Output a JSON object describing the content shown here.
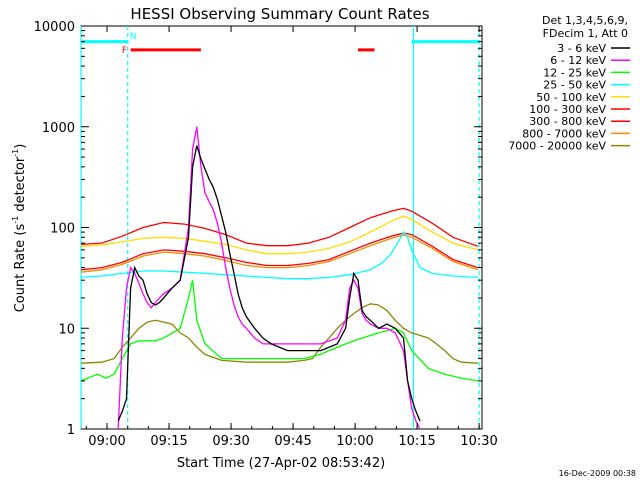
{
  "chart_data": {
    "type": "line",
    "title": "HESSI Observing Summary Count Rates",
    "xlabel": "Start Time (27-Apr-02 08:53:42)",
    "ylabel_main": "Count Rate (s",
    "ylabel_sup1": "-1",
    "ylabel_mid": " detector",
    "ylabel_sup2": "-1",
    "ylabel_end": ")",
    "x_unit": "minutes after 08:53:42",
    "xlim": [
      0,
      97
    ],
    "ylim": [
      1,
      10000
    ],
    "yscale": "log",
    "x_tick_labels": [
      {
        "label": "09:00",
        "x": 6.3
      },
      {
        "label": "09:15",
        "x": 21.3
      },
      {
        "label": "09:30",
        "x": 36.3
      },
      {
        "label": "09:45",
        "x": 51.3
      },
      {
        "label": "10:00",
        "x": 66.3
      },
      {
        "label": "10:15",
        "x": 81.3
      },
      {
        "label": "10:30",
        "x": 96.3
      }
    ],
    "y_tick_labels": [
      {
        "label": "1",
        "v": 1
      },
      {
        "label": "10",
        "v": 10
      },
      {
        "label": "100",
        "v": 100
      },
      {
        "label": "1000",
        "v": 1000
      },
      {
        "label": "10000",
        "v": 10000
      }
    ],
    "legend_header": [
      "Det 1,3,4,5,6,9,",
      "FDecim 1, Att 0"
    ],
    "legend_position": "right",
    "series": [
      {
        "name": "3 - 6 keV",
        "color": "#000000",
        "points": [
          [
            9,
            1.2
          ],
          [
            10,
            1.5
          ],
          [
            11,
            2
          ],
          [
            12,
            25
          ],
          [
            13,
            40
          ],
          [
            14,
            33
          ],
          [
            15,
            30
          ],
          [
            16,
            22
          ],
          [
            17,
            18
          ],
          [
            18,
            17
          ],
          [
            19,
            18
          ],
          [
            20,
            20
          ],
          [
            22,
            25
          ],
          [
            24,
            30
          ],
          [
            26,
            80
          ],
          [
            27,
            400
          ],
          [
            28,
            650
          ],
          [
            29,
            480
          ],
          [
            30,
            380
          ],
          [
            31,
            300
          ],
          [
            32,
            250
          ],
          [
            33,
            190
          ],
          [
            34,
            130
          ],
          [
            35,
            90
          ],
          [
            36,
            55
          ],
          [
            37,
            35
          ],
          [
            38,
            22
          ],
          [
            39,
            16
          ],
          [
            40,
            13
          ],
          [
            42,
            10
          ],
          [
            44,
            8
          ],
          [
            46,
            7
          ],
          [
            50,
            6
          ],
          [
            54,
            6
          ],
          [
            58,
            6
          ],
          [
            62,
            7
          ],
          [
            64,
            10
          ],
          [
            65,
            20
          ],
          [
            66,
            35
          ],
          [
            67,
            30
          ],
          [
            68,
            15
          ],
          [
            69,
            13
          ],
          [
            70,
            12
          ],
          [
            72,
            10
          ],
          [
            74,
            11
          ],
          [
            76,
            10
          ],
          [
            78,
            8
          ],
          [
            79,
            3
          ],
          [
            80,
            2
          ],
          [
            81,
            1.5
          ],
          [
            82,
            1.2
          ]
        ]
      },
      {
        "name": "6 - 12 keV",
        "color": "#ff00ff",
        "points": [
          [
            9,
            1
          ],
          [
            10,
            8
          ],
          [
            11,
            25
          ],
          [
            12,
            40
          ],
          [
            13,
            35
          ],
          [
            14,
            28
          ],
          [
            15,
            22
          ],
          [
            16,
            18
          ],
          [
            17,
            16
          ],
          [
            18,
            18
          ],
          [
            19,
            20
          ],
          [
            20,
            22
          ],
          [
            22,
            25
          ],
          [
            24,
            30
          ],
          [
            26,
            100
          ],
          [
            27,
            600
          ],
          [
            28,
            1000
          ],
          [
            29,
            400
          ],
          [
            30,
            220
          ],
          [
            31,
            180
          ],
          [
            32,
            150
          ],
          [
            33,
            110
          ],
          [
            34,
            70
          ],
          [
            35,
            40
          ],
          [
            36,
            25
          ],
          [
            37,
            17
          ],
          [
            38,
            13
          ],
          [
            39,
            11
          ],
          [
            40,
            10
          ],
          [
            42,
            8
          ],
          [
            44,
            7
          ],
          [
            46,
            7
          ],
          [
            50,
            7
          ],
          [
            54,
            7
          ],
          [
            58,
            7
          ],
          [
            62,
            8
          ],
          [
            64,
            12
          ],
          [
            65,
            25
          ],
          [
            66,
            30
          ],
          [
            67,
            25
          ],
          [
            68,
            14
          ],
          [
            69,
            12
          ],
          [
            70,
            11
          ],
          [
            72,
            10
          ],
          [
            74,
            10
          ],
          [
            76,
            9
          ],
          [
            78,
            6
          ],
          [
            79,
            3
          ],
          [
            80,
            1.6
          ],
          [
            81,
            1.2
          ],
          [
            82,
            1
          ]
        ]
      },
      {
        "name": "12 - 25 keV",
        "color": "#00ff00",
        "points": [
          [
            0,
            3
          ],
          [
            4,
            3.5
          ],
          [
            6,
            3.2
          ],
          [
            8,
            3.5
          ],
          [
            10,
            5
          ],
          [
            12,
            7
          ],
          [
            14,
            7.5
          ],
          [
            18,
            7.5
          ],
          [
            20,
            8
          ],
          [
            24,
            10
          ],
          [
            26,
            20
          ],
          [
            27,
            30
          ],
          [
            28,
            12
          ],
          [
            30,
            7
          ],
          [
            34,
            5
          ],
          [
            38,
            5
          ],
          [
            42,
            5
          ],
          [
            46,
            5
          ],
          [
            50,
            5
          ],
          [
            54,
            5
          ],
          [
            58,
            5.5
          ],
          [
            60,
            6
          ],
          [
            64,
            7
          ],
          [
            68,
            8
          ],
          [
            72,
            9
          ],
          [
            76,
            10
          ],
          [
            78,
            9
          ],
          [
            80,
            6
          ],
          [
            84,
            4
          ],
          [
            88,
            3.5
          ],
          [
            92,
            3.2
          ],
          [
            96,
            3
          ]
        ]
      },
      {
        "name": "25 - 50 keV",
        "color": "#00ffff",
        "points": [
          [
            0,
            32
          ],
          [
            5,
            33
          ],
          [
            10,
            35
          ],
          [
            15,
            37
          ],
          [
            20,
            37
          ],
          [
            25,
            36
          ],
          [
            30,
            35
          ],
          [
            35,
            34
          ],
          [
            40,
            33
          ],
          [
            45,
            32
          ],
          [
            50,
            31
          ],
          [
            55,
            31
          ],
          [
            60,
            32
          ],
          [
            65,
            34
          ],
          [
            70,
            38
          ],
          [
            73,
            45
          ],
          [
            75,
            55
          ],
          [
            77,
            75
          ],
          [
            78,
            90
          ],
          [
            79,
            80
          ],
          [
            80,
            60
          ],
          [
            82,
            40
          ],
          [
            85,
            35
          ],
          [
            90,
            33
          ],
          [
            96,
            32
          ]
        ]
      },
      {
        "name": "50 - 100 keV",
        "color": "#ffdd00",
        "points": [
          [
            0,
            65
          ],
          [
            5,
            67
          ],
          [
            10,
            72
          ],
          [
            15,
            78
          ],
          [
            20,
            80
          ],
          [
            25,
            78
          ],
          [
            30,
            73
          ],
          [
            35,
            68
          ],
          [
            40,
            60
          ],
          [
            45,
            55
          ],
          [
            50,
            55
          ],
          [
            55,
            57
          ],
          [
            60,
            62
          ],
          [
            65,
            72
          ],
          [
            70,
            90
          ],
          [
            75,
            115
          ],
          [
            78,
            130
          ],
          [
            80,
            120
          ],
          [
            85,
            90
          ],
          [
            90,
            70
          ],
          [
            96,
            60
          ]
        ]
      },
      {
        "name": "100 - 300 keV",
        "color": "#ff0000",
        "points": [
          [
            0,
            68
          ],
          [
            5,
            70
          ],
          [
            10,
            82
          ],
          [
            15,
            100
          ],
          [
            20,
            112
          ],
          [
            25,
            108
          ],
          [
            30,
            98
          ],
          [
            35,
            85
          ],
          [
            40,
            70
          ],
          [
            45,
            66
          ],
          [
            50,
            66
          ],
          [
            55,
            70
          ],
          [
            60,
            80
          ],
          [
            65,
            100
          ],
          [
            70,
            125
          ],
          [
            75,
            145
          ],
          [
            78,
            155
          ],
          [
            80,
            145
          ],
          [
            85,
            110
          ],
          [
            90,
            80
          ],
          [
            96,
            65
          ]
        ]
      },
      {
        "name": "300 - 800 keV",
        "color": "#ff0000",
        "points": [
          [
            0,
            38
          ],
          [
            5,
            40
          ],
          [
            10,
            45
          ],
          [
            15,
            55
          ],
          [
            20,
            60
          ],
          [
            25,
            58
          ],
          [
            30,
            55
          ],
          [
            35,
            50
          ],
          [
            40,
            45
          ],
          [
            45,
            42
          ],
          [
            50,
            42
          ],
          [
            55,
            44
          ],
          [
            60,
            48
          ],
          [
            65,
            58
          ],
          [
            70,
            70
          ],
          [
            75,
            82
          ],
          [
            78,
            88
          ],
          [
            80,
            85
          ],
          [
            85,
            65
          ],
          [
            90,
            48
          ],
          [
            96,
            40
          ]
        ]
      },
      {
        "name": "800 - 7000 keV",
        "color": "#ff8800",
        "points": [
          [
            0,
            36
          ],
          [
            5,
            38
          ],
          [
            10,
            43
          ],
          [
            15,
            52
          ],
          [
            20,
            57
          ],
          [
            25,
            55
          ],
          [
            30,
            52
          ],
          [
            35,
            47
          ],
          [
            40,
            42
          ],
          [
            45,
            40
          ],
          [
            50,
            40
          ],
          [
            55,
            42
          ],
          [
            60,
            46
          ],
          [
            65,
            55
          ],
          [
            70,
            66
          ],
          [
            75,
            78
          ],
          [
            78,
            84
          ],
          [
            80,
            80
          ],
          [
            85,
            62
          ],
          [
            90,
            46
          ],
          [
            96,
            38
          ]
        ]
      },
      {
        "name": "7000 - 20000 keV",
        "color": "#888800",
        "points": [
          [
            0,
            4.5
          ],
          [
            5,
            4.6
          ],
          [
            8,
            5
          ],
          [
            10,
            6.5
          ],
          [
            12,
            8
          ],
          [
            14,
            10
          ],
          [
            16,
            11.5
          ],
          [
            18,
            12
          ],
          [
            20,
            11.5
          ],
          [
            22,
            11
          ],
          [
            24,
            9
          ],
          [
            26,
            8
          ],
          [
            28,
            6.5
          ],
          [
            30,
            5.5
          ],
          [
            34,
            4.8
          ],
          [
            40,
            4.6
          ],
          [
            46,
            4.6
          ],
          [
            50,
            4.6
          ],
          [
            54,
            4.8
          ],
          [
            56,
            5
          ],
          [
            58,
            6.5
          ],
          [
            60,
            8
          ],
          [
            62,
            10
          ],
          [
            64,
            12
          ],
          [
            66,
            14
          ],
          [
            68,
            16
          ],
          [
            70,
            17.5
          ],
          [
            72,
            17
          ],
          [
            74,
            15
          ],
          [
            76,
            12
          ],
          [
            78,
            10
          ],
          [
            80,
            9
          ],
          [
            82,
            8.5
          ],
          [
            84,
            8
          ],
          [
            86,
            7
          ],
          [
            88,
            6
          ],
          [
            90,
            5
          ],
          [
            92,
            4.6
          ],
          [
            96,
            4.5
          ]
        ]
      }
    ],
    "flag_rows": [
      {
        "color": "#00ffff",
        "segments": [
          [
            0,
            11.5
          ],
          [
            80,
            96.5
          ]
        ],
        "v": 7000
      },
      {
        "color": "#ff0000",
        "segments": [
          [
            12,
            29
          ],
          [
            67,
            71
          ]
        ],
        "v": 5800
      }
    ],
    "flag_labels": [
      {
        "label": "F",
        "color": "#ff0000",
        "x": 10.5,
        "v": 5800
      },
      {
        "label": "N",
        "color": "#00ffff",
        "x": 12.6,
        "v": 8000
      }
    ],
    "vlines": [
      {
        "x": 0,
        "style": "solid",
        "color": "#00ffff"
      },
      {
        "x": 11.3,
        "style": "dashed",
        "color": "#00ffff"
      },
      {
        "x": 80.4,
        "style": "solid",
        "color": "#00ffff"
      },
      {
        "x": 96.3,
        "style": "dashed",
        "color": "#00ffff"
      }
    ],
    "timestamp": "16-Dec-2009 00:38",
    "grid": false
  }
}
